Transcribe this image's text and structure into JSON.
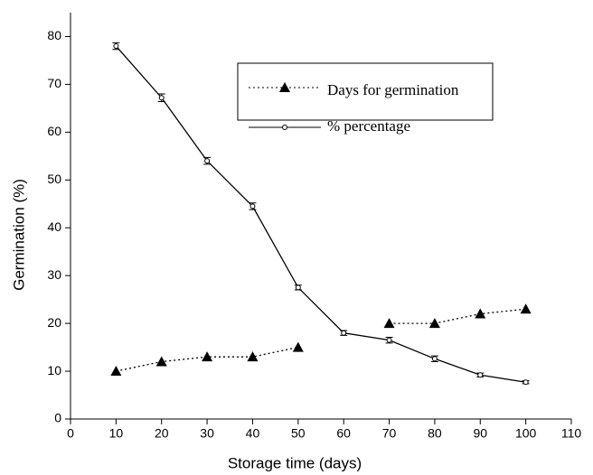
{
  "chart_data": {
    "type": "line",
    "x_label": "Storage time (days)",
    "y_label": "Germination (%)",
    "x": [
      10,
      20,
      30,
      40,
      50,
      60,
      70,
      80,
      90,
      100
    ],
    "series": [
      {
        "name": "Days for germination",
        "color": "#000000",
        "marker": "triangle",
        "line_style": "dotted",
        "values": [
          10,
          12,
          13,
          13,
          15,
          null,
          20,
          20,
          22,
          23
        ]
      },
      {
        "name": "% percentage",
        "color": "#000000",
        "marker": "circle",
        "line_style": "solid",
        "values": [
          78,
          67.2,
          54,
          44.5,
          27.5,
          18,
          16.5,
          12.6,
          9.2,
          7.7
        ],
        "errors": [
          0.7,
          0.8,
          0.7,
          0.7,
          0.5,
          0.5,
          0.6,
          0.6,
          0.4,
          0.3
        ]
      }
    ],
    "xlim": [
      0,
      110
    ],
    "xticks": [
      0,
      10,
      20,
      30,
      40,
      50,
      60,
      70,
      80,
      90,
      100,
      110
    ],
    "ylim": [
      0,
      85
    ],
    "yticks": [
      0,
      10,
      20,
      30,
      40,
      50,
      60,
      70,
      80
    ],
    "grid": false,
    "legend_position": "upper right"
  }
}
